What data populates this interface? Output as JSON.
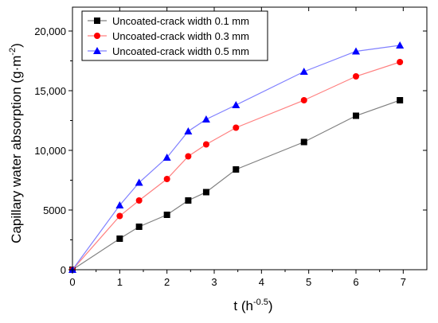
{
  "chart_data": {
    "type": "line",
    "title": "",
    "xlabel": {
      "base": "t (h",
      "sup": "-0.5",
      "end": ")"
    },
    "ylabel": {
      "base": "Capillary water absorption (g·m",
      "sup": "-2",
      "end": ")"
    },
    "xlim": [
      0,
      7.5
    ],
    "ylim": [
      0,
      22000
    ],
    "xticks": [
      0,
      1,
      2,
      3,
      4,
      5,
      6,
      7
    ],
    "yticks": [
      0,
      5000,
      10000,
      15000,
      20000
    ],
    "ytick_labels": [
      "0",
      "5000",
      "10,000",
      "15,000",
      "20,000"
    ],
    "grid": false,
    "legend_position": "top-left",
    "series": [
      {
        "name": "Uncoated-crack width 0.1 mm",
        "color": "#000000",
        "line_color": "#808080",
        "marker": "square",
        "x": [
          0,
          1,
          1.41,
          2,
          2.45,
          2.83,
          3.46,
          4.9,
          6,
          6.93
        ],
        "y": [
          0,
          2600,
          3600,
          4600,
          5800,
          6500,
          8400,
          10700,
          12900,
          14200
        ]
      },
      {
        "name": "Uncoated-crack width 0.3 mm",
        "color": "#ff0000",
        "line_color": "#ff8080",
        "marker": "circle",
        "x": [
          0,
          1,
          1.41,
          2,
          2.45,
          2.83,
          3.46,
          4.9,
          6,
          6.93
        ],
        "y": [
          0,
          4500,
          5800,
          7600,
          9500,
          10500,
          11900,
          14200,
          16200,
          17400
        ]
      },
      {
        "name": "Uncoated-crack width 0.5 mm",
        "color": "#0000ff",
        "line_color": "#8080ff",
        "marker": "triangle",
        "x": [
          0,
          1,
          1.41,
          2,
          2.45,
          2.83,
          3.46,
          4.9,
          6,
          6.93
        ],
        "y": [
          0,
          5400,
          7300,
          9400,
          11600,
          12600,
          13800,
          16600,
          18300,
          18800
        ]
      }
    ]
  }
}
